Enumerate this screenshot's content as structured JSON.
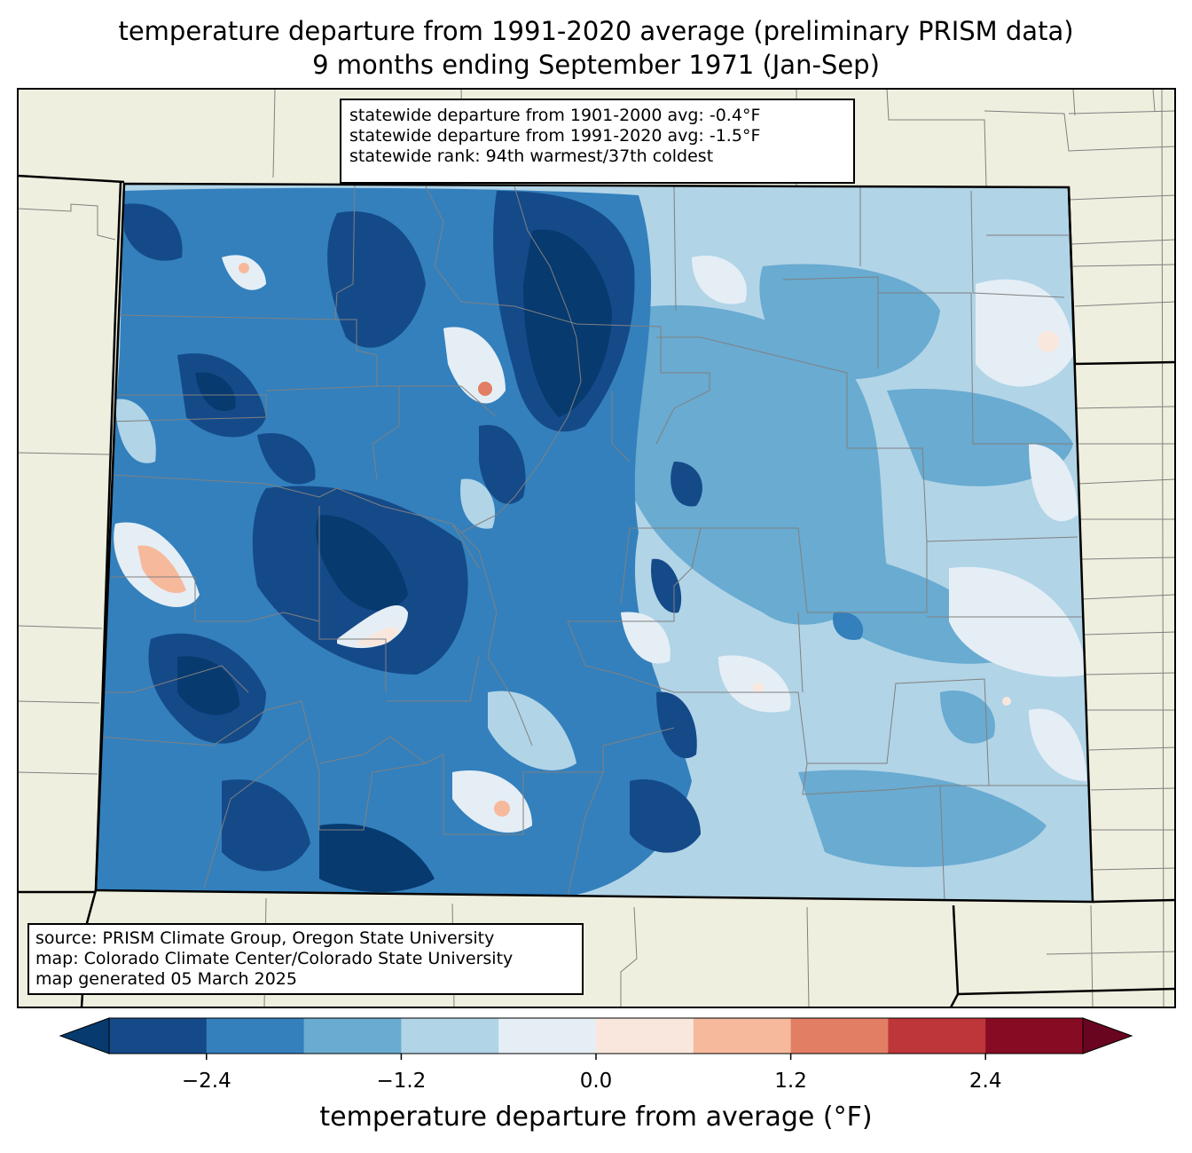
{
  "title_line1": "temperature departure from 1991-2020 average (preliminary PRISM data)",
  "title_line2": "9 months ending September 1971 (Jan-Sep)",
  "stats": {
    "line1": "statewide departure from 1901-2000 avg: -0.4°F",
    "line2": "statewide departure from 1991-2020 avg: -1.5°F",
    "line3": "statewide rank: 94th warmest/37th coldest"
  },
  "source": {
    "line1": "source: PRISM Climate Group, Oregon State University",
    "line2": "map: Colorado Climate Center/Colorado State University",
    "line3": "map generated 05 March 2025"
  },
  "colorbar": {
    "label": "temperature departure from average (°F)",
    "ticks": [
      "−2.4",
      "−1.2",
      "0.0",
      "1.2",
      "2.4"
    ],
    "tick_values": [
      -2.4,
      -1.2,
      0.0,
      1.2,
      2.4
    ],
    "range": [
      -3.0,
      3.0
    ],
    "step": 0.6,
    "colors": [
      "#073a6f",
      "#154a89",
      "#3380bd",
      "#69abd1",
      "#b1d4e7",
      "#e5eef5",
      "#f9e7de",
      "#f7b99c",
      "#e27e64",
      "#bf363a",
      "#870b22",
      "#6a0520"
    ]
  },
  "map_colors": {
    "land": "#efefdf",
    "county_lines": "#808080",
    "state_lines": "#000000"
  }
}
